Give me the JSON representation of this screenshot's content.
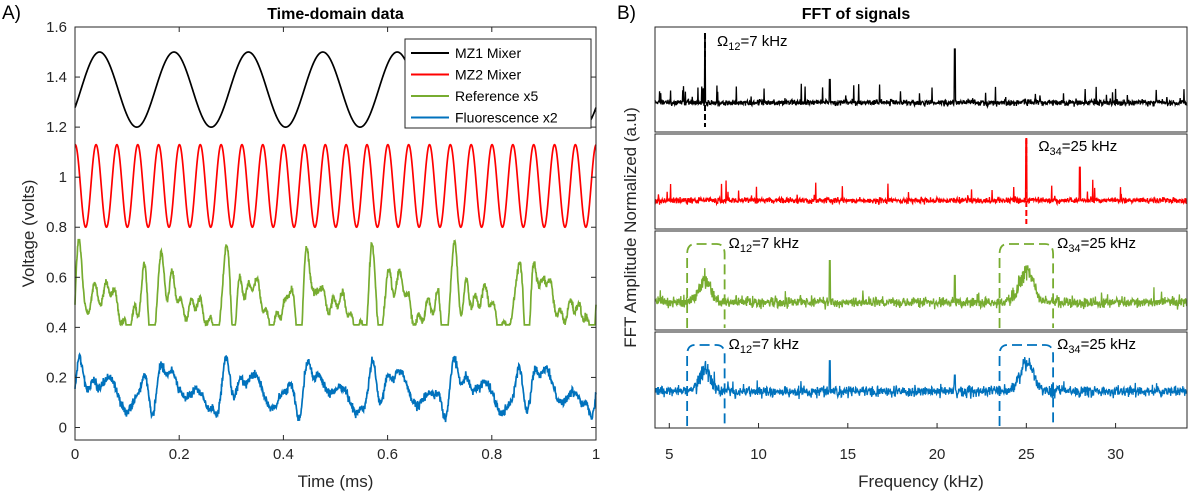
{
  "chart_data": [
    {
      "type": "line",
      "panel_letter": "A)",
      "title": "Time-domain data",
      "xlabel": "Time (ms)",
      "ylabel": "Voltage (volts)",
      "xlim": [
        0,
        1
      ],
      "ylim": [
        -0.05,
        1.6
      ],
      "xticks": [
        0,
        0.2,
        0.4,
        0.6,
        0.8,
        1
      ],
      "xtick_labels": [
        "0",
        "0.2",
        "0.4",
        "0.6",
        "0.8",
        "1"
      ],
      "yticks": [
        0,
        0.2,
        0.4,
        0.6,
        0.8,
        1,
        1.2,
        1.4,
        1.6
      ],
      "ytick_labels": [
        "0",
        "0.2",
        "0.4",
        "0.6",
        "0.8",
        "1",
        "1.2",
        "1.4",
        "1.6"
      ],
      "legend_position": "top-right",
      "series": [
        {
          "name": "MZ1 Mixer",
          "color": "#000000",
          "signal": "triangle-like sine",
          "frequency_khz": 7,
          "min": 1.2,
          "max": 1.5
        },
        {
          "name": "MZ2 Mixer",
          "color": "#ff0000",
          "signal": "sine",
          "frequency_khz": 25,
          "min": 0.8,
          "max": 1.13
        },
        {
          "name": "Reference x5",
          "color": "#77ac30",
          "signal": "beat of 7 kHz and 25 kHz",
          "min": 0.41,
          "max": 0.75
        },
        {
          "name": "Fluorescence x2",
          "color": "#0072bd",
          "signal": "noisy beat of 7 kHz and 25 kHz",
          "min": 0.0,
          "max": 0.39
        }
      ]
    },
    {
      "type": "line",
      "panel_letter": "B)",
      "title": "FFT of signals",
      "xlabel": "Frequency (kHz)",
      "ylabel": "FFT Amplitude Normalized (a.u)",
      "xlim": [
        4.2,
        34
      ],
      "xticks": [
        5,
        10,
        15,
        20,
        25,
        30
      ],
      "xtick_labels": [
        "5",
        "10",
        "15",
        "20",
        "25",
        "30"
      ],
      "stacked_subplots": 4,
      "subplots": [
        {
          "color": "#000000",
          "peaks_khz": [
            7,
            14,
            21
          ],
          "main_peak_khz": 7,
          "annotations": [
            {
              "symbol": "Ω",
              "sub": "12",
              "text": "=7 kHz",
              "at_khz": 7
            }
          ]
        },
        {
          "color": "#ff0000",
          "peaks_khz": [
            25
          ],
          "main_peak_khz": 25,
          "annotations": [
            {
              "symbol": "Ω",
              "sub": "34",
              "text": "=25 kHz",
              "at_khz": 25
            }
          ]
        },
        {
          "color": "#77ac30",
          "peaks_khz": [
            7,
            25
          ],
          "bracketed": true,
          "annotations": [
            {
              "symbol": "Ω",
              "sub": "12",
              "text": "=7 kHz",
              "at_khz": 7
            },
            {
              "symbol": "Ω",
              "sub": "34",
              "text": "=25 kHz",
              "at_khz": 25
            }
          ]
        },
        {
          "color": "#0072bd",
          "peaks_khz": [
            7,
            25
          ],
          "bracketed": true,
          "annotations": [
            {
              "symbol": "Ω",
              "sub": "12",
              "text": "=7 kHz",
              "at_khz": 7
            },
            {
              "symbol": "Ω",
              "sub": "34",
              "text": "=25 kHz",
              "at_khz": 25
            }
          ]
        }
      ]
    }
  ]
}
